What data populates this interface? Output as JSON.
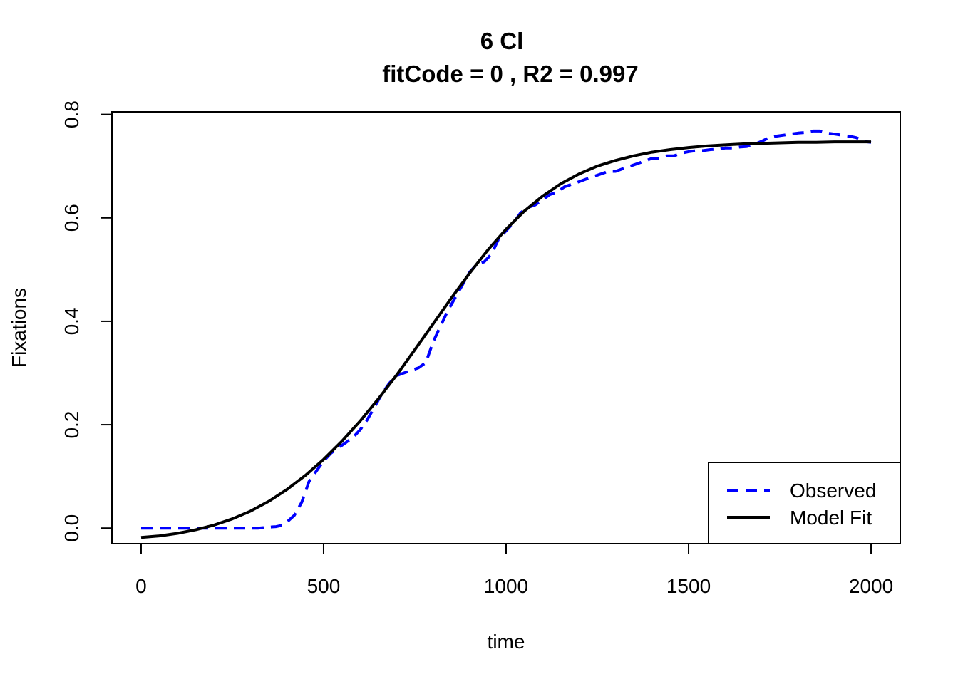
{
  "chart_data": {
    "type": "line",
    "title": "6 Cl",
    "subtitle": "fitCode =  0 , R2 =  0.997",
    "xlabel": "time",
    "ylabel": "Fixations",
    "xlim": [
      -80,
      2080
    ],
    "ylim": [
      -0.03,
      0.805
    ],
    "xticks": [
      0,
      500,
      1000,
      1500,
      2000
    ],
    "yticks": [
      0.0,
      0.2,
      0.4,
      0.6,
      0.8
    ],
    "xtick_labels": [
      "0",
      "500",
      "1000",
      "1500",
      "2000"
    ],
    "ytick_labels": [
      "0.0",
      "0.2",
      "0.4",
      "0.6",
      "0.8"
    ],
    "grid": false,
    "legend": {
      "position": "bottom-right",
      "entries": [
        {
          "label": "Observed",
          "color": "#0000ff",
          "style": "dashed"
        },
        {
          "label": "Model Fit",
          "color": "#000000",
          "style": "solid"
        }
      ]
    },
    "series": [
      {
        "name": "Observed",
        "color": "#0000ff",
        "style": "dashed",
        "x": [
          0,
          50,
          100,
          150,
          200,
          250,
          300,
          320,
          350,
          370,
          390,
          400,
          420,
          440,
          460,
          480,
          500,
          520,
          540,
          560,
          580,
          600,
          620,
          640,
          660,
          680,
          700,
          720,
          740,
          760,
          780,
          800,
          820,
          840,
          860,
          880,
          900,
          920,
          940,
          960,
          980,
          1000,
          1020,
          1040,
          1060,
          1080,
          1100,
          1120,
          1140,
          1160,
          1180,
          1200,
          1220,
          1240,
          1260,
          1280,
          1300,
          1320,
          1340,
          1360,
          1380,
          1400,
          1420,
          1440,
          1460,
          1480,
          1500,
          1520,
          1540,
          1560,
          1580,
          1600,
          1620,
          1640,
          1660,
          1680,
          1700,
          1720,
          1740,
          1760,
          1780,
          1800,
          1820,
          1840,
          1860,
          1880,
          1900,
          1920,
          1940,
          1960,
          1980,
          2000
        ],
        "values": [
          0.0,
          0.0,
          0.0,
          0.0,
          0.0,
          0.0,
          0.0,
          0.0,
          0.002,
          0.003,
          0.006,
          0.012,
          0.025,
          0.05,
          0.09,
          0.11,
          0.13,
          0.145,
          0.155,
          0.165,
          0.175,
          0.19,
          0.21,
          0.235,
          0.26,
          0.28,
          0.295,
          0.3,
          0.305,
          0.31,
          0.32,
          0.36,
          0.39,
          0.42,
          0.445,
          0.47,
          0.495,
          0.51,
          0.515,
          0.53,
          0.56,
          0.575,
          0.59,
          0.61,
          0.62,
          0.625,
          0.635,
          0.645,
          0.65,
          0.66,
          0.665,
          0.67,
          0.675,
          0.68,
          0.685,
          0.69,
          0.69,
          0.695,
          0.7,
          0.705,
          0.71,
          0.715,
          0.715,
          0.72,
          0.72,
          0.725,
          0.728,
          0.73,
          0.73,
          0.732,
          0.733,
          0.735,
          0.735,
          0.737,
          0.738,
          0.742,
          0.748,
          0.755,
          0.758,
          0.76,
          0.762,
          0.764,
          0.765,
          0.768,
          0.768,
          0.764,
          0.762,
          0.76,
          0.758,
          0.755,
          0.748,
          0.746
        ]
      },
      {
        "name": "Model Fit",
        "color": "#000000",
        "style": "solid",
        "x": [
          0,
          50,
          100,
          150,
          200,
          250,
          300,
          350,
          400,
          450,
          500,
          550,
          600,
          650,
          700,
          750,
          800,
          850,
          900,
          950,
          1000,
          1050,
          1100,
          1150,
          1200,
          1250,
          1300,
          1350,
          1400,
          1450,
          1500,
          1550,
          1600,
          1650,
          1700,
          1750,
          1800,
          1850,
          1900,
          1950,
          2000
        ],
        "values": [
          -0.018,
          -0.015,
          -0.01,
          -0.003,
          0.006,
          0.018,
          0.033,
          0.052,
          0.075,
          0.102,
          0.133,
          0.168,
          0.207,
          0.25,
          0.296,
          0.345,
          0.395,
          0.445,
          0.493,
          0.538,
          0.578,
          0.613,
          0.642,
          0.666,
          0.685,
          0.7,
          0.711,
          0.72,
          0.727,
          0.732,
          0.736,
          0.739,
          0.741,
          0.743,
          0.744,
          0.745,
          0.746,
          0.746,
          0.747,
          0.747,
          0.747
        ]
      }
    ]
  }
}
